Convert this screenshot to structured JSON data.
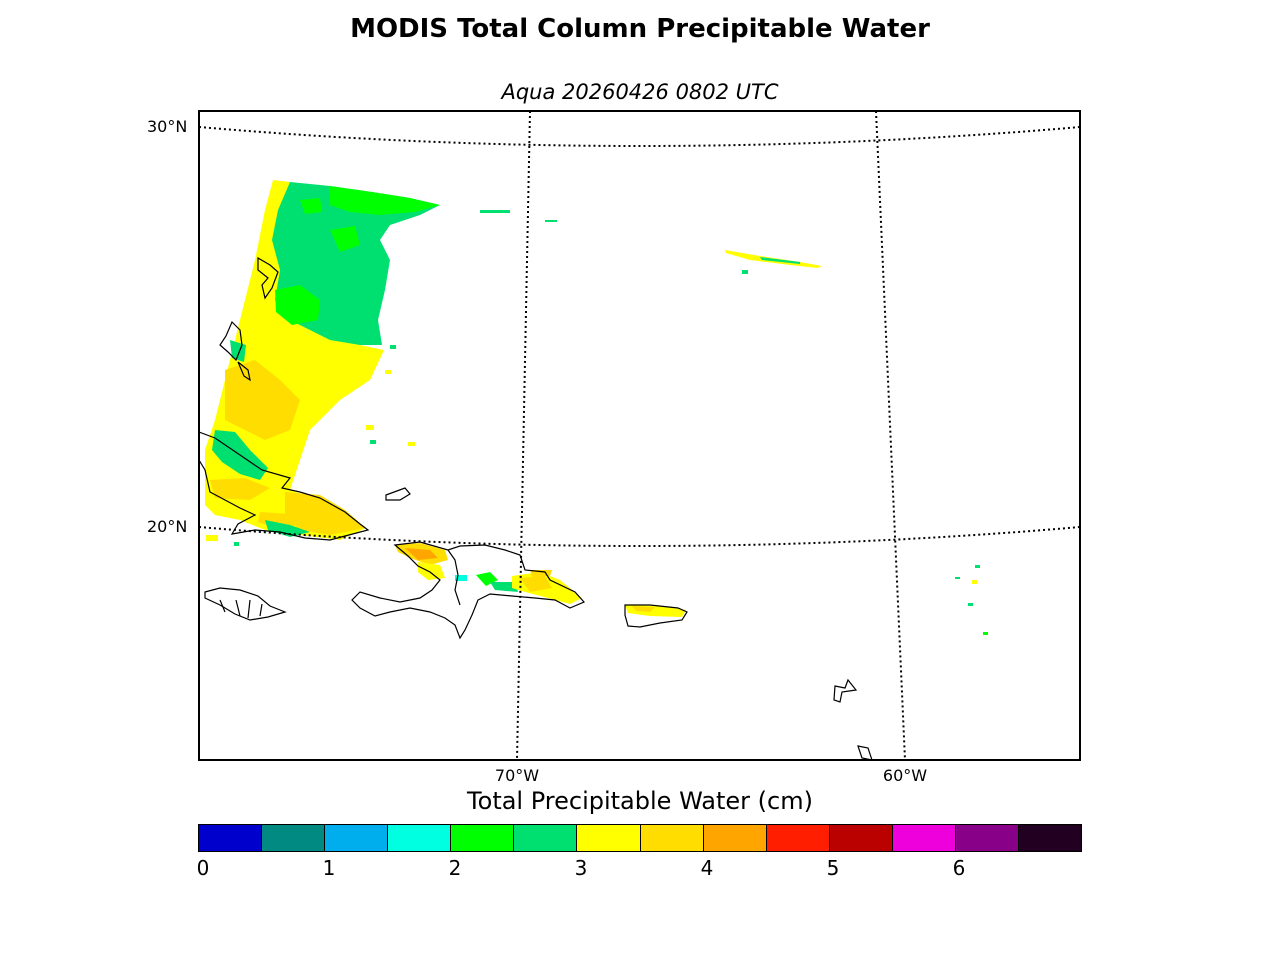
{
  "title": "MODIS Total Column Precipitable Water",
  "subtitle": "Aqua 20260426 0802 UTC",
  "map": {
    "lat_labels": [
      {
        "id": "lat-30",
        "text": "30°N"
      },
      {
        "id": "lat-20",
        "text": "20°N"
      }
    ],
    "lon_labels": [
      {
        "id": "lon-70",
        "text": "70°W"
      },
      {
        "id": "lon-60",
        "text": "60°W"
      }
    ],
    "gridlines": "dotted",
    "coastlines": [
      "Bahamas",
      "Cuba",
      "Jamaica",
      "Hispaniola",
      "Puerto Rico",
      "Guadeloupe",
      "Dominica"
    ]
  },
  "colorbar": {
    "title": "Total Precipitable Water (cm)",
    "colors": [
      "#0000cc",
      "#008a82",
      "#00aeee",
      "#00ffe0",
      "#00ff00",
      "#00e070",
      "#ffff00",
      "#ffdd00",
      "#ffa500",
      "#ff1e00",
      "#bb0000",
      "#ee00dd",
      "#880088",
      "#220022"
    ],
    "ticks": [
      "0",
      "1",
      "2",
      "3",
      "4",
      "5",
      "6"
    ],
    "range": [
      0,
      7
    ],
    "units": "cm"
  }
}
